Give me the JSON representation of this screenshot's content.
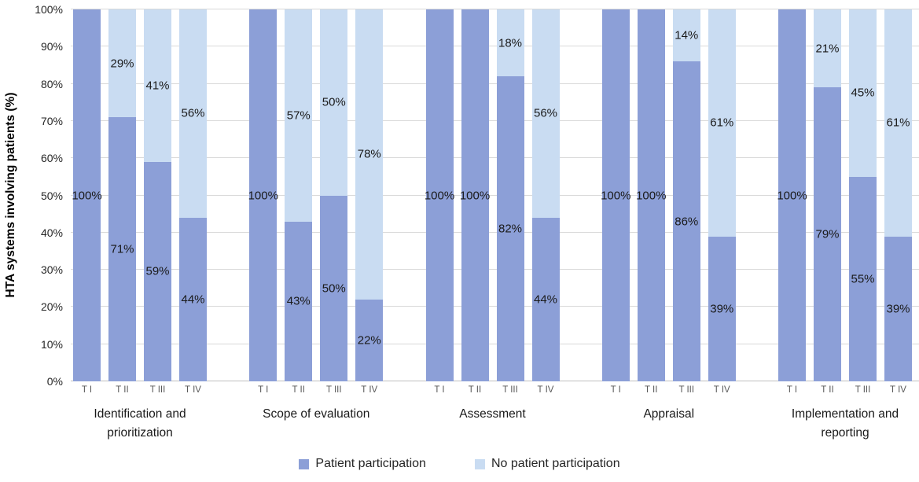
{
  "chart_data": {
    "type": "bar",
    "stacked": true,
    "orientation": "vertical",
    "title": "",
    "ylabel": "HTA systems involving patients (%)",
    "xlabel": "",
    "ylim": [
      0,
      100
    ],
    "ytick_step": 10,
    "ytick_labels": [
      "0%",
      "10%",
      "20%",
      "30%",
      "40%",
      "50%",
      "60%",
      "70%",
      "80%",
      "90%",
      "100%"
    ],
    "grid": true,
    "gridline_color": "#d9d9d9",
    "axis_line_color": "#bfbfbf",
    "data_label_format": "{value}%",
    "legend_position": "bottom",
    "series_names": [
      "Patient participation",
      "No patient participation"
    ],
    "colors": {
      "patient_participation": "#8c9fd7",
      "no_patient_participation": "#c9dcf2"
    },
    "bar_ticks": [
      "T I",
      "T II",
      "T III",
      "T IV"
    ],
    "groups": [
      {
        "label": "Identification and prioritization",
        "bars": [
          {
            "tick": "T I",
            "patient_participation": 100,
            "no_patient_participation": 0
          },
          {
            "tick": "T II",
            "patient_participation": 71,
            "no_patient_participation": 29
          },
          {
            "tick": "T III",
            "patient_participation": 59,
            "no_patient_participation": 41
          },
          {
            "tick": "T IV",
            "patient_participation": 44,
            "no_patient_participation": 56
          }
        ]
      },
      {
        "label": "Scope of evaluation",
        "bars": [
          {
            "tick": "T I",
            "patient_participation": 100,
            "no_patient_participation": 0
          },
          {
            "tick": "T II",
            "patient_participation": 43,
            "no_patient_participation": 57
          },
          {
            "tick": "T III",
            "patient_participation": 50,
            "no_patient_participation": 50
          },
          {
            "tick": "T IV",
            "patient_participation": 22,
            "no_patient_participation": 78
          }
        ]
      },
      {
        "label": "Assessment",
        "bars": [
          {
            "tick": "T I",
            "patient_participation": 100,
            "no_patient_participation": 0
          },
          {
            "tick": "T II",
            "patient_participation": 100,
            "no_patient_participation": 0
          },
          {
            "tick": "T III",
            "patient_participation": 82,
            "no_patient_participation": 18
          },
          {
            "tick": "T IV",
            "patient_participation": 44,
            "no_patient_participation": 56
          }
        ]
      },
      {
        "label": "Appraisal",
        "bars": [
          {
            "tick": "T I",
            "patient_participation": 100,
            "no_patient_participation": 0
          },
          {
            "tick": "T II",
            "patient_participation": 100,
            "no_patient_participation": 0
          },
          {
            "tick": "T III",
            "patient_participation": 86,
            "no_patient_participation": 14
          },
          {
            "tick": "T IV",
            "patient_participation": 39,
            "no_patient_participation": 61
          }
        ]
      },
      {
        "label": "Implementation and reporting",
        "bars": [
          {
            "tick": "T I",
            "patient_participation": 100,
            "no_patient_participation": 0
          },
          {
            "tick": "T II",
            "patient_participation": 79,
            "no_patient_participation": 21
          },
          {
            "tick": "T III",
            "patient_participation": 55,
            "no_patient_participation": 45
          },
          {
            "tick": "T IV",
            "patient_participation": 39,
            "no_patient_participation": 61
          }
        ]
      }
    ]
  },
  "legend": {
    "items": [
      {
        "label": "Patient participation",
        "swatch_color": "#8c9fd7"
      },
      {
        "label": "No patient participation",
        "swatch_color": "#c9dcf2"
      }
    ]
  }
}
